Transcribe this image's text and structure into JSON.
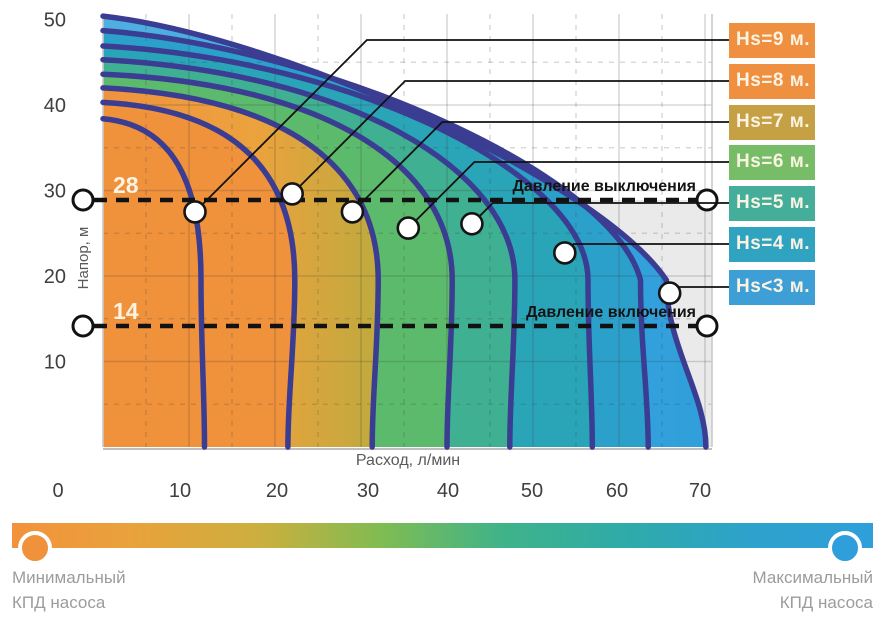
{
  "axes": {
    "y_label": "Напор, м",
    "x_label": "Расход, л/мин",
    "y_ticks": [
      "50",
      "40",
      "30",
      "20",
      "10"
    ],
    "x_ticks": [
      "0",
      "10",
      "20",
      "30",
      "40",
      "50",
      "60",
      "70"
    ]
  },
  "pressure": {
    "cutoff_label": "Давление выключения",
    "cutoff_value": "28",
    "cutin_label": "Давление включения",
    "cutin_value": "14"
  },
  "legend": {
    "items": [
      {
        "label": "Hs=9 м.",
        "color": "#EE9040"
      },
      {
        "label": "Hs=8 м.",
        "color": "#EE9040"
      },
      {
        "label": "Hs=7 м.",
        "color": "#C5A044"
      },
      {
        "label": "Hs=6 м.",
        "color": "#77BD68"
      },
      {
        "label": "Hs=5 м.",
        "color": "#45AE9A"
      },
      {
        "label": "Hs=4 м.",
        "color": "#2FA3C0"
      },
      {
        "label": "Hs<3 м.",
        "color": "#3D9FD6"
      }
    ]
  },
  "efficiency": {
    "min_line1": "Минимальный",
    "min_line2": "КПД насоса",
    "max_line1": "Максимальный",
    "max_line2": "КПД насоса",
    "min_dot_color": "#F0913C",
    "max_dot_color": "#2F9FDB",
    "bar_gradient": [
      "#F2923C",
      "#E9A23C",
      "#CBAF3E",
      "#7FBC52",
      "#3FB389",
      "#2FABA8",
      "#2EA2CC",
      "#2F9FDB"
    ]
  },
  "chart_data": {
    "type": "area",
    "title": "Pump head-flow curves with pressure switch levels",
    "xlabel": "Расход, л/мин",
    "ylabel": "Напор, м",
    "xlim": [
      0,
      70.8
    ],
    "ylim": [
      0,
      50.6
    ],
    "x_ticks": [
      0,
      10,
      20,
      30,
      40,
      50,
      60,
      70
    ],
    "y_ticks": [
      10,
      20,
      30,
      40,
      50
    ],
    "grid": "solid every 10 units, dashed every 5 units",
    "legend_position": "right",
    "cutoff_line": {
      "label": "Давление выключения",
      "value": 28
    },
    "cutin_line": {
      "label": "Давление включения",
      "value": 14
    },
    "curves": [
      {
        "label": "Hs=9 м.",
        "badge_color": "#EE9040",
        "band_color": "#F0913C",
        "h0": 38.4,
        "q_knee": 11.4,
        "q_max": 11.8,
        "marker": {
          "q": 10.7,
          "h": 27.5
        }
      },
      {
        "label": "Hs=8 м.",
        "badge_color": "#EE9040",
        "band_color": "#F0913C",
        "h0": 40.3,
        "q_knee": 22.3,
        "q_max": 21.5,
        "marker": {
          "q": 22.0,
          "h": 29.6
        }
      },
      {
        "label": "Hs=7 м.",
        "badge_color": "#C5A044",
        "band_color": "#F0923E",
        "band_gradient": [
          "#F0923E",
          "#ECA23D",
          "#BFAA3E"
        ],
        "h0": 42.0,
        "q_knee": 32.0,
        "q_max": 31.3,
        "marker": {
          "q": 29.0,
          "h": 27.5
        }
      },
      {
        "label": "Hs=6 м.",
        "badge_color": "#77BD68",
        "band_color": "#5CBA6C",
        "h0": 43.6,
        "q_knee": 40.6,
        "q_max": 40.0,
        "marker": {
          "q": 35.5,
          "h": 25.6
        }
      },
      {
        "label": "Hs=5 м.",
        "badge_color": "#45AE9A",
        "band_color": "#3FB091",
        "h0": 45.3,
        "q_knee": 47.9,
        "q_max": 47.3,
        "marker": {
          "q": 42.9,
          "h": 26.1
        }
      },
      {
        "label": "Hs=4 м.",
        "badge_color": "#2FA3C0",
        "band_color": "#2AA5B8",
        "h0": 46.9,
        "q_knee": 56.4,
        "q_max": 56.9,
        "marker": {
          "q": 53.7,
          "h": 22.7
        }
      },
      {
        "label": null,
        "badge_color": null,
        "band_color": "#2BA0CB",
        "h0": 48.7,
        "q_knee": 62.5,
        "q_max": 63.4,
        "marker": null
      },
      {
        "label": "Hs<3 м.",
        "badge_color": "#3D9FD6",
        "band_color": "#47A9DC",
        "band_gradient": [
          "#50AFE1",
          "#2F9FDB"
        ],
        "h0": 50.4,
        "q_knee": 65.5,
        "q_max": 70.1,
        "marker": {
          "q": 65.9,
          "h": 18.0
        }
      }
    ],
    "curve_color": "#3A3D92",
    "cutoff_value_label": "28",
    "cutin_value_label": "14"
  }
}
